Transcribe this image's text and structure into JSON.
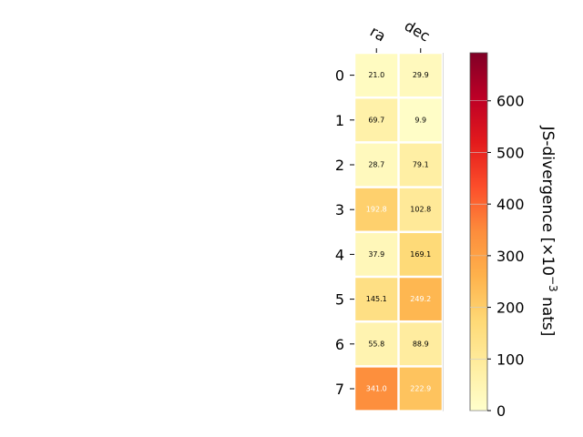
{
  "chart_data": {
    "type": "heatmap",
    "x_categories": [
      "ra",
      "dec"
    ],
    "y_categories": [
      "0",
      "1",
      "2",
      "3",
      "4",
      "5",
      "6",
      "7"
    ],
    "values": [
      [
        21.0,
        29.9
      ],
      [
        69.7,
        9.9
      ],
      [
        28.7,
        79.1
      ],
      [
        192.8,
        102.8
      ],
      [
        37.9,
        169.1
      ],
      [
        145.1,
        249.2
      ],
      [
        55.8,
        88.9
      ],
      [
        341.0,
        222.9
      ]
    ],
    "cell_labels": [
      [
        "21.0",
        "29.9"
      ],
      [
        "69.7",
        "9.9"
      ],
      [
        "28.7",
        "79.1"
      ],
      [
        "192.8",
        "102.8"
      ],
      [
        "37.9",
        "169.1"
      ],
      [
        "145.1",
        "249.2"
      ],
      [
        "55.8",
        "88.9"
      ],
      [
        "341.0",
        "222.9"
      ]
    ],
    "colormap": "YlOrRd",
    "color_range": [
      0,
      693
    ],
    "colorbar": {
      "label_main": "JS-divergence [×10",
      "label_exp": "−3",
      "label_tail": " nats]",
      "ticks": [
        0,
        100,
        200,
        300,
        400,
        500,
        600
      ]
    },
    "x_tick_position": "top",
    "grid": false
  }
}
